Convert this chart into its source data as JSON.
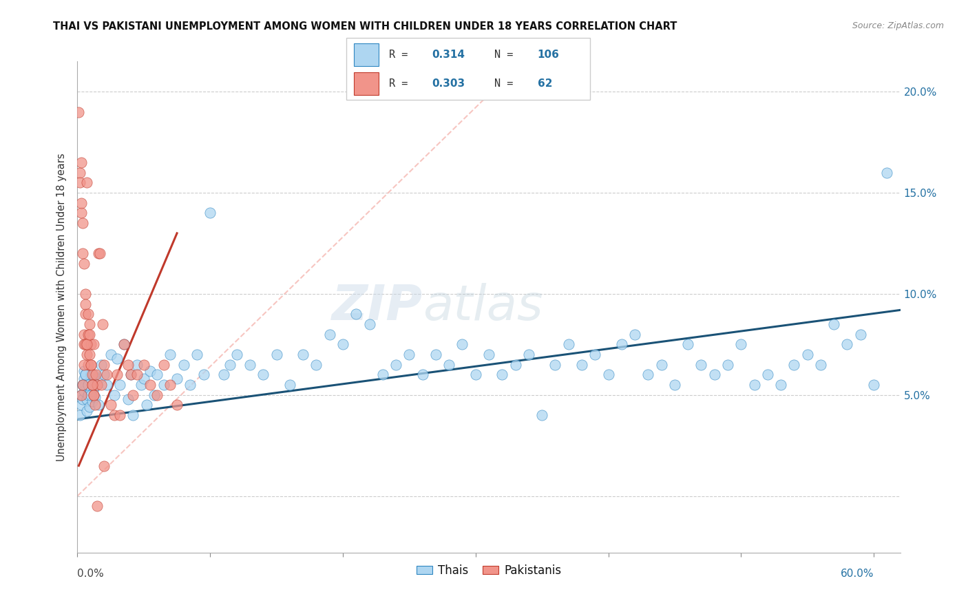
{
  "title": "THAI VS PAKISTANI UNEMPLOYMENT AMONG WOMEN WITH CHILDREN UNDER 18 YEARS CORRELATION CHART",
  "source": "Source: ZipAtlas.com",
  "ylabel": "Unemployment Among Women with Children Under 18 years",
  "xlim": [
    0.0,
    0.62
  ],
  "ylim": [
    -0.028,
    0.215
  ],
  "ytick_vals": [
    0.0,
    0.05,
    0.1,
    0.15,
    0.2
  ],
  "ytick_labels": [
    "",
    "5.0%",
    "10.0%",
    "15.0%",
    "20.0%"
  ],
  "xtick_left_label": "0.0%",
  "xtick_right_label": "60.0%",
  "thai_color": "#aed6f1",
  "pak_color": "#f1948a",
  "thai_edge_color": "#2e86c1",
  "pak_edge_color": "#c0392b",
  "thai_line_color": "#1a5276",
  "pak_line_color": "#c0392b",
  "ref_line_color": "#f1948a",
  "watermark": "ZIPatlas",
  "thai_R": "0.314",
  "thai_N": "106",
  "pak_R": "0.303",
  "pak_N": "62",
  "thai_scatter_x": [
    0.002,
    0.003,
    0.003,
    0.004,
    0.004,
    0.005,
    0.005,
    0.005,
    0.006,
    0.006,
    0.007,
    0.007,
    0.008,
    0.008,
    0.009,
    0.01,
    0.01,
    0.011,
    0.012,
    0.013,
    0.015,
    0.016,
    0.018,
    0.02,
    0.022,
    0.025,
    0.028,
    0.03,
    0.032,
    0.035,
    0.038,
    0.04,
    0.042,
    0.045,
    0.048,
    0.05,
    0.052,
    0.055,
    0.058,
    0.06,
    0.065,
    0.07,
    0.075,
    0.08,
    0.085,
    0.09,
    0.095,
    0.1,
    0.11,
    0.115,
    0.12,
    0.13,
    0.14,
    0.15,
    0.16,
    0.17,
    0.18,
    0.19,
    0.2,
    0.21,
    0.22,
    0.23,
    0.24,
    0.25,
    0.26,
    0.27,
    0.28,
    0.29,
    0.3,
    0.31,
    0.32,
    0.33,
    0.34,
    0.35,
    0.36,
    0.37,
    0.38,
    0.39,
    0.4,
    0.41,
    0.42,
    0.43,
    0.44,
    0.45,
    0.46,
    0.47,
    0.48,
    0.49,
    0.5,
    0.51,
    0.52,
    0.53,
    0.54,
    0.55,
    0.56,
    0.57,
    0.58,
    0.59,
    0.6,
    0.61,
    0.004,
    0.006,
    0.008,
    0.01,
    0.012,
    0.015
  ],
  "thai_scatter_y": [
    0.04,
    0.045,
    0.05,
    0.055,
    0.048,
    0.052,
    0.058,
    0.062,
    0.055,
    0.06,
    0.042,
    0.048,
    0.05,
    0.056,
    0.044,
    0.052,
    0.06,
    0.047,
    0.053,
    0.049,
    0.058,
    0.045,
    0.065,
    0.06,
    0.055,
    0.07,
    0.05,
    0.068,
    0.055,
    0.075,
    0.048,
    0.06,
    0.04,
    0.065,
    0.055,
    0.058,
    0.045,
    0.062,
    0.05,
    0.06,
    0.055,
    0.07,
    0.058,
    0.065,
    0.055,
    0.07,
    0.06,
    0.14,
    0.06,
    0.065,
    0.07,
    0.065,
    0.06,
    0.07,
    0.055,
    0.07,
    0.065,
    0.08,
    0.075,
    0.09,
    0.085,
    0.06,
    0.065,
    0.07,
    0.06,
    0.07,
    0.065,
    0.075,
    0.06,
    0.07,
    0.06,
    0.065,
    0.07,
    0.04,
    0.065,
    0.075,
    0.065,
    0.07,
    0.06,
    0.075,
    0.08,
    0.06,
    0.065,
    0.055,
    0.075,
    0.065,
    0.06,
    0.065,
    0.075,
    0.055,
    0.06,
    0.055,
    0.065,
    0.07,
    0.065,
    0.085,
    0.075,
    0.08,
    0.055,
    0.16,
    0.055,
    0.06,
    0.055,
    0.05,
    0.06,
    0.055
  ],
  "pak_scatter_x": [
    0.001,
    0.002,
    0.002,
    0.003,
    0.003,
    0.003,
    0.004,
    0.004,
    0.005,
    0.005,
    0.005,
    0.006,
    0.006,
    0.006,
    0.007,
    0.007,
    0.008,
    0.008,
    0.009,
    0.009,
    0.01,
    0.01,
    0.011,
    0.011,
    0.012,
    0.012,
    0.013,
    0.014,
    0.015,
    0.016,
    0.017,
    0.018,
    0.019,
    0.02,
    0.022,
    0.025,
    0.028,
    0.03,
    0.032,
    0.035,
    0.038,
    0.04,
    0.042,
    0.045,
    0.05,
    0.055,
    0.06,
    0.065,
    0.07,
    0.075,
    0.003,
    0.004,
    0.005,
    0.006,
    0.007,
    0.008,
    0.009,
    0.01,
    0.011,
    0.012,
    0.015,
    0.02
  ],
  "pak_scatter_y": [
    0.19,
    0.16,
    0.155,
    0.165,
    0.14,
    0.145,
    0.135,
    0.12,
    0.115,
    0.08,
    0.075,
    0.1,
    0.09,
    0.095,
    0.155,
    0.07,
    0.065,
    0.08,
    0.07,
    0.085,
    0.075,
    0.065,
    0.06,
    0.055,
    0.05,
    0.075,
    0.045,
    0.06,
    0.055,
    0.12,
    0.12,
    0.055,
    0.085,
    0.065,
    0.06,
    0.045,
    0.04,
    0.06,
    0.04,
    0.075,
    0.065,
    0.06,
    0.05,
    0.06,
    0.065,
    0.055,
    0.05,
    0.065,
    0.055,
    0.045,
    0.05,
    0.055,
    0.065,
    0.075,
    0.075,
    0.09,
    0.08,
    0.065,
    0.055,
    0.05,
    -0.005,
    0.015
  ],
  "pak_trend_x": [
    0.001,
    0.075
  ],
  "pak_trend_y": [
    0.015,
    0.13
  ],
  "thai_trend_x": [
    0.0,
    0.62
  ],
  "thai_trend_y": [
    0.038,
    0.092
  ],
  "ref_line_x": [
    0.0,
    0.32
  ],
  "ref_line_y": [
    0.0,
    0.205
  ]
}
